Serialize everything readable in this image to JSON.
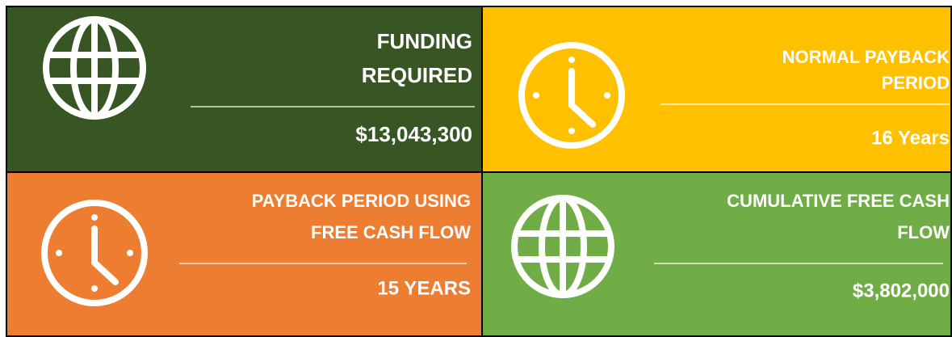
{
  "tiles": [
    {
      "title_lines": [
        "FUNDING",
        "REQUIRED"
      ],
      "value": "$13,043,300"
    },
    {
      "title_lines": [
        "NORMAL PAYBACK",
        "PERIOD"
      ],
      "value": "16 Years"
    },
    {
      "title_lines": [
        "PAYBACK PERIOD USING",
        "FREE CASH FLOW"
      ],
      "value": "15 YEARS"
    },
    {
      "title_lines": [
        "CUMULATIVE FREE CASH",
        "FLOW"
      ],
      "value": "$3,802,000"
    }
  ]
}
